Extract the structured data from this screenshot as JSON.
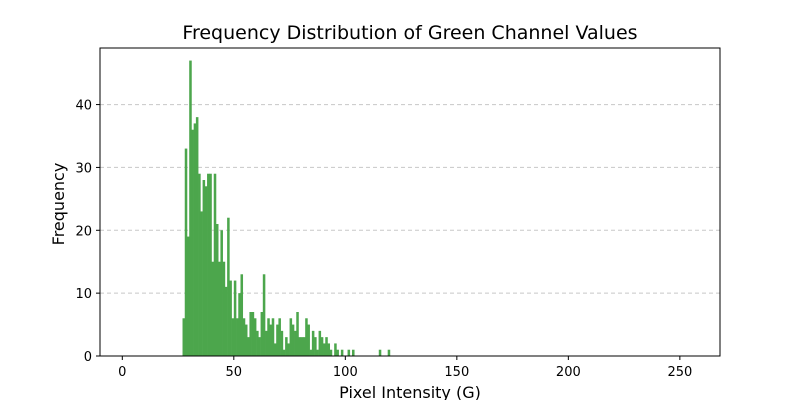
{
  "chart_data": {
    "type": "bar",
    "title": "Frequency Distribution of Green Channel Values",
    "xlabel": "Pixel Intensity (G)",
    "ylabel": "Frequency",
    "xlim": [
      -10,
      268
    ],
    "ylim": [
      0,
      49
    ],
    "x_ticks": [
      0,
      50,
      100,
      150,
      200,
      250
    ],
    "y_ticks": [
      0,
      10,
      20,
      30,
      40
    ],
    "grid": "y-dashed",
    "bar_color": "#4ca64c",
    "x": [
      27,
      28,
      29,
      30,
      31,
      32,
      33,
      34,
      35,
      36,
      37,
      38,
      39,
      40,
      41,
      42,
      43,
      44,
      45,
      46,
      47,
      48,
      49,
      50,
      51,
      52,
      53,
      54,
      55,
      56,
      57,
      58,
      59,
      60,
      61,
      62,
      63,
      64,
      65,
      66,
      67,
      68,
      69,
      70,
      71,
      72,
      73,
      74,
      75,
      76,
      77,
      78,
      79,
      80,
      81,
      82,
      83,
      84,
      85,
      86,
      87,
      88,
      89,
      90,
      91,
      92,
      93,
      94,
      95,
      96,
      97,
      98,
      99,
      100,
      101,
      102,
      103,
      104,
      105,
      106,
      107,
      108,
      109,
      110,
      111,
      112,
      113,
      114,
      115,
      116,
      117,
      118,
      119
    ],
    "values": [
      6,
      33,
      19,
      47,
      36,
      37,
      38,
      29,
      23,
      28,
      27,
      29,
      29,
      15,
      29,
      21,
      15,
      20,
      15,
      11,
      22,
      12,
      6,
      12,
      6,
      10,
      13,
      6,
      5,
      3,
      7,
      7,
      6,
      4,
      3,
      7,
      13,
      4,
      6,
      5,
      6,
      2,
      5,
      6,
      4,
      1,
      3,
      2,
      6,
      5,
      4,
      7,
      3,
      3,
      3,
      6,
      5,
      1,
      4,
      3,
      1,
      4,
      3,
      2,
      3,
      2,
      1,
      0,
      2,
      1,
      0,
      1,
      0,
      0,
      1,
      0,
      1,
      0,
      0,
      0,
      0,
      0,
      0,
      0,
      0,
      0,
      0,
      0,
      1,
      0,
      0,
      0,
      1
    ]
  }
}
